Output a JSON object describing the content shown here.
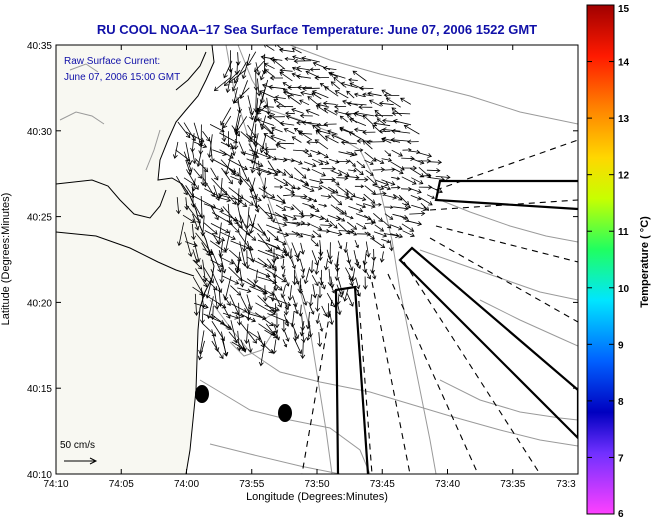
{
  "title": "RU COOL  NOAA–17  Sea Surface Temperature:  June 07, 2006 1522 GMT",
  "annotation": {
    "line1": "Raw Surface Current:",
    "line2": "June 07, 2006 15:00 GMT"
  },
  "scale_label": "50 cm/s",
  "x_axis": {
    "label": "Longitude (Degrees:Minutes)",
    "ticks": [
      "74:10",
      "74:05",
      "74:00",
      "73:55",
      "73:50",
      "73:45",
      "73:40",
      "73:35",
      "73:3"
    ]
  },
  "y_axis": {
    "label": "Latitude (Degrees:Minutes)",
    "ticks": [
      "40:35",
      "40:30",
      "40:25",
      "40:20",
      "40:15",
      "40:10"
    ]
  },
  "colorbar": {
    "label": "Temperature ( °C)",
    "ticks": [
      "15",
      "14",
      "13",
      "12",
      "11",
      "10",
      "9",
      "8",
      "7",
      "6"
    ],
    "colors": [
      "#b00000",
      "#ff2000",
      "#ff8000",
      "#ffe000",
      "#a0ff20",
      "#20ff80",
      "#00e0ff",
      "#0060ff",
      "#0000b0",
      "#8040ff",
      "#ff40ff"
    ]
  },
  "colors": {
    "title": "#1010a8",
    "land": "#f8f8f2",
    "contour": "#9a9a9a",
    "vector": "#000000"
  }
}
